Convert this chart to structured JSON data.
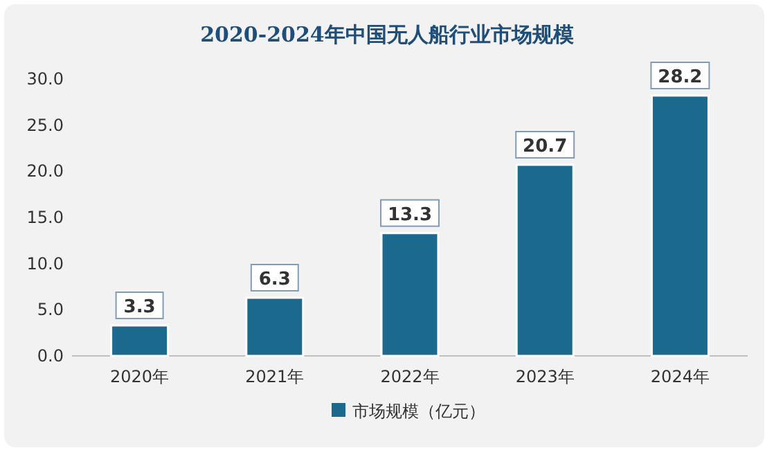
{
  "chart_data": {
    "type": "bar",
    "title": "2020-2024年中国无人船行业市场规模",
    "categories": [
      "2020年",
      "2021年",
      "2022年",
      "2023年",
      "2024年"
    ],
    "series": [
      {
        "name": "市场规模（亿元）",
        "color": "#1b6a8e",
        "values": [
          3.3,
          6.3,
          13.3,
          20.7,
          28.2
        ]
      }
    ],
    "ylim": [
      0,
      30
    ],
    "yticks": [
      {
        "value": 0,
        "label": "0.0"
      },
      {
        "value": 5,
        "label": "5.0"
      },
      {
        "value": 10,
        "label": "10.0"
      },
      {
        "value": 15,
        "label": "15.0"
      },
      {
        "value": 20,
        "label": "20.0"
      },
      {
        "value": 25,
        "label": "25.0"
      },
      {
        "value": 30,
        "label": "30.0"
      }
    ],
    "grid": false,
    "legend": "bottom",
    "data_labels": true
  }
}
